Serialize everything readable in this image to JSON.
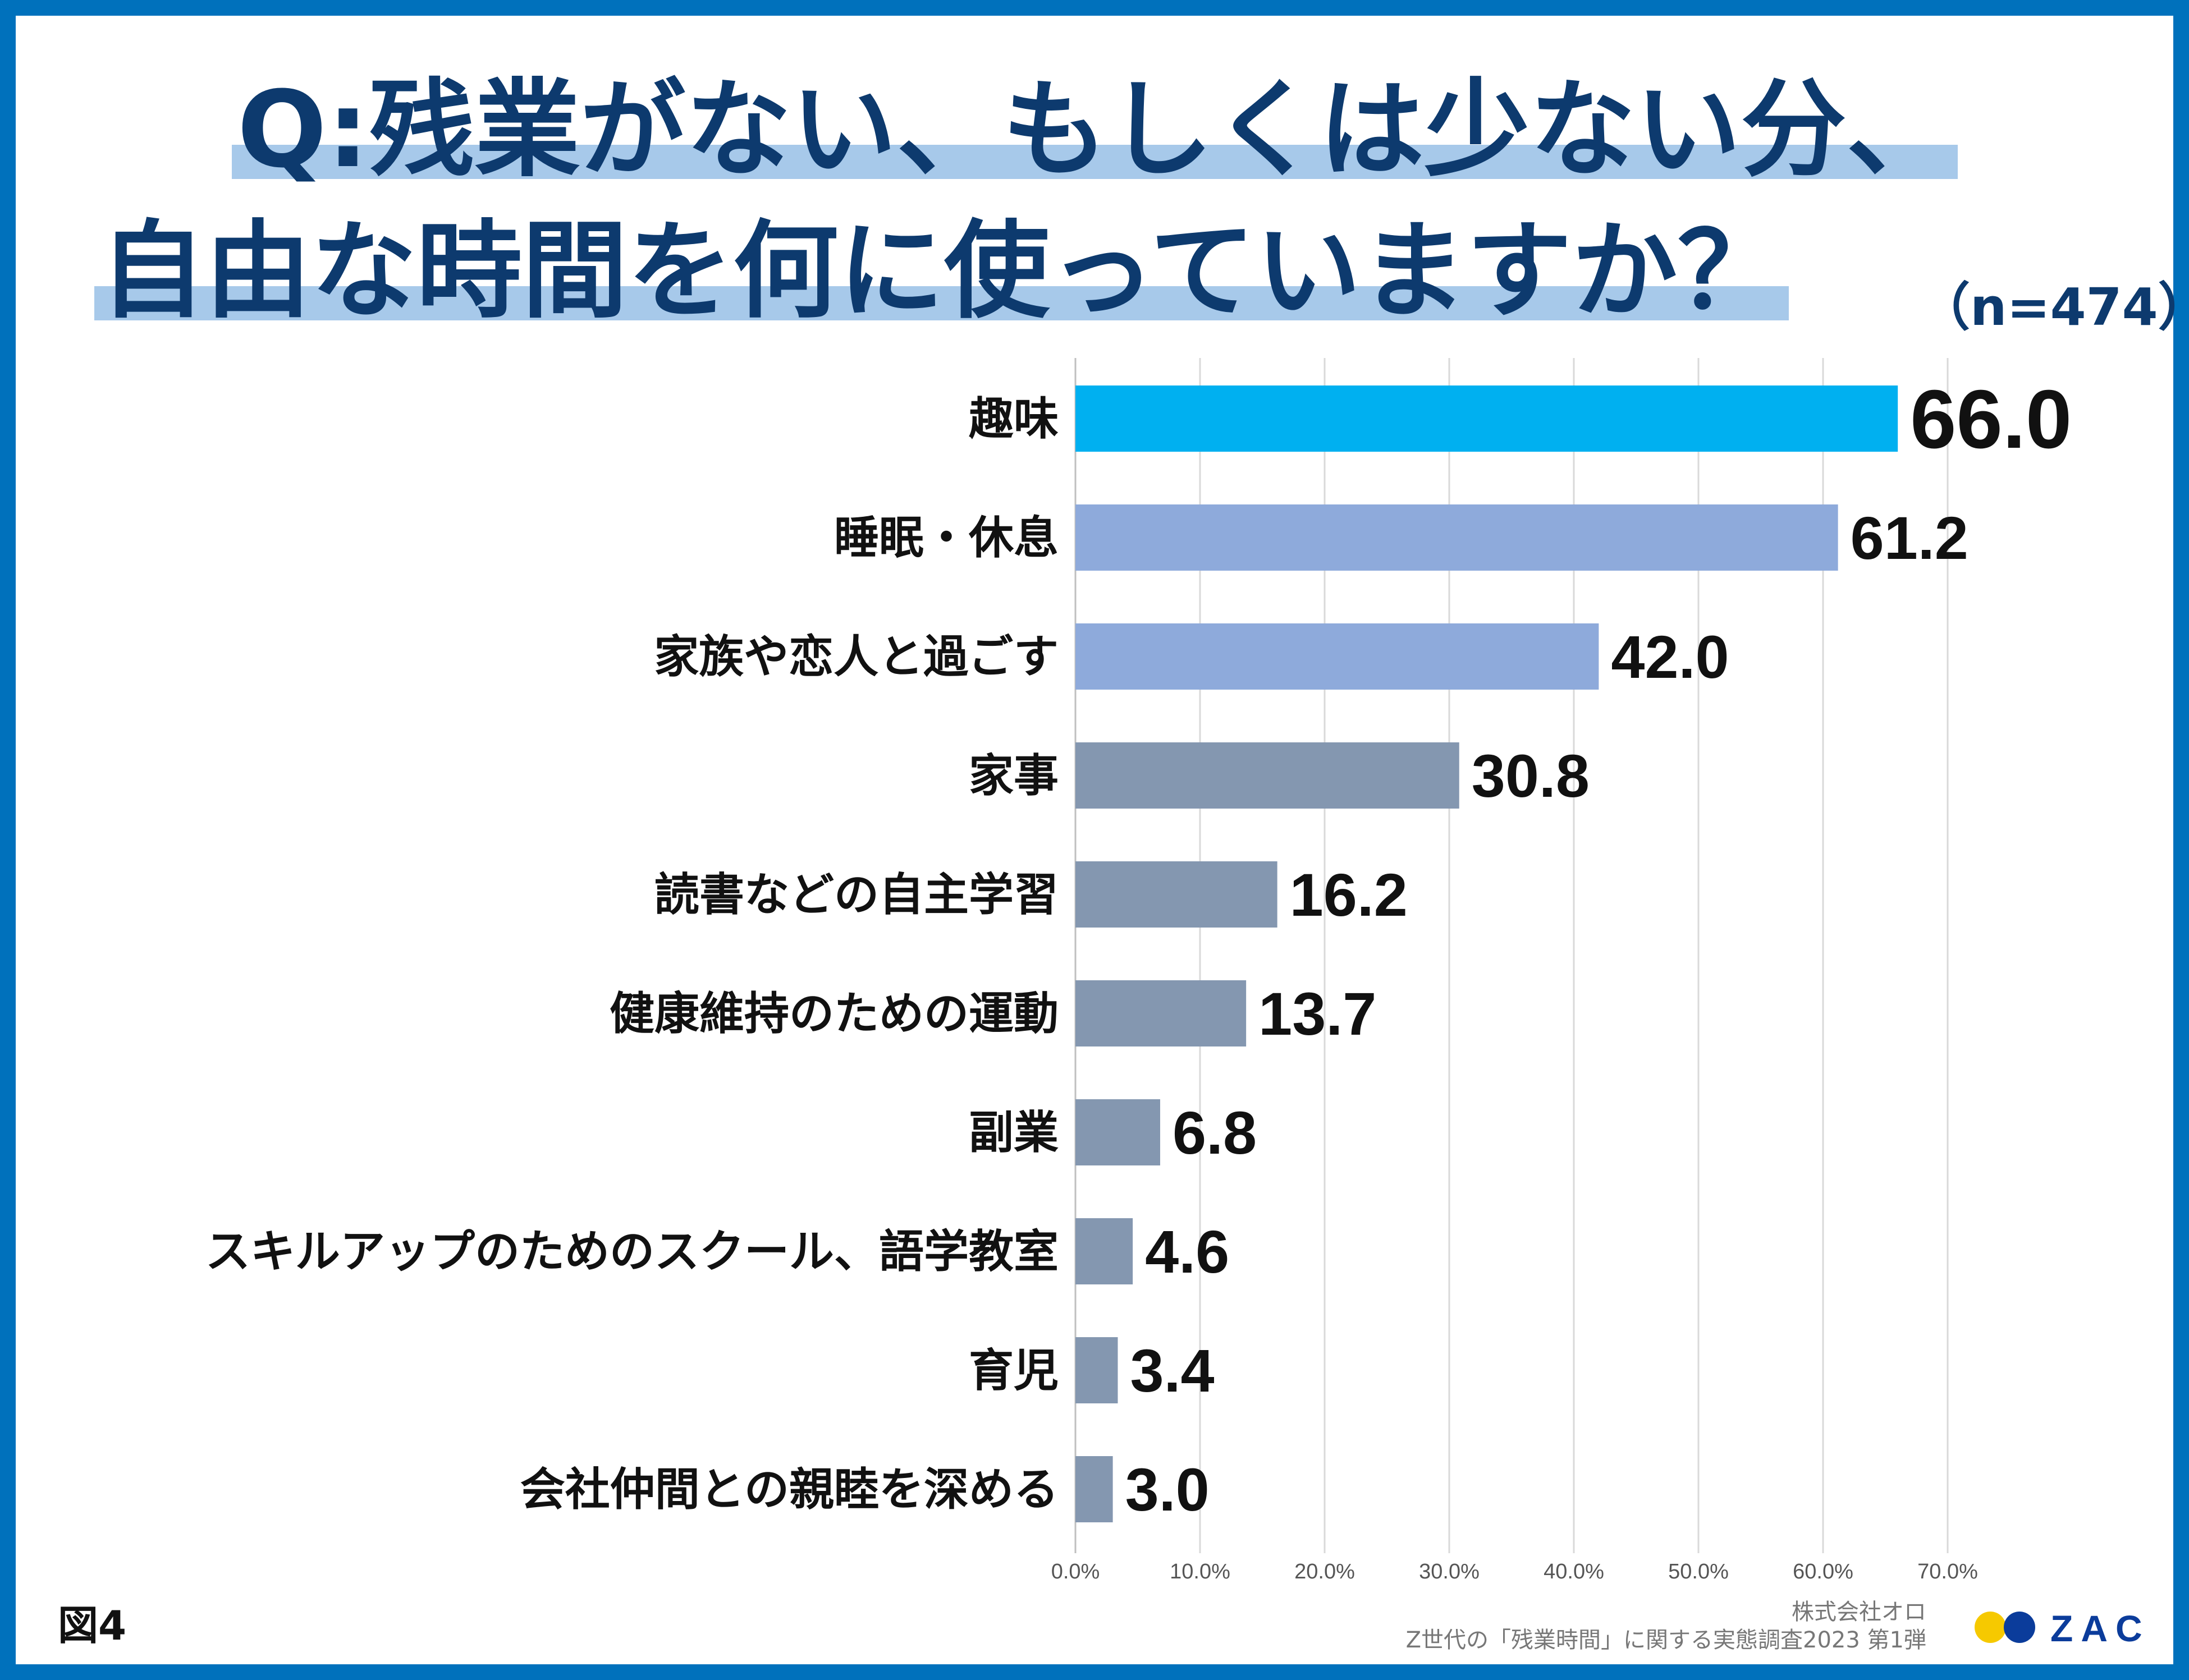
{
  "title": {
    "line1": "Q:残業がない、もしくは少ない分、",
    "line2": "自由な時間を何に使っていますか？",
    "sample_size": "（n=474）"
  },
  "chart_data": {
    "type": "bar",
    "orientation": "horizontal",
    "title": "Q:残業がない、もしくは少ない分、自由な時間を何に使っていますか？",
    "categories": [
      "趣味",
      "睡眠・休息",
      "家族や恋人と過ごす",
      "家事",
      "読書などの自主学習",
      "健康維持のための運動",
      "副業",
      "スキルアップのためのスクール、語学教室",
      "育児",
      "会社仲間との親睦を深める"
    ],
    "values": [
      66.0,
      61.2,
      42.0,
      30.8,
      16.2,
      13.7,
      6.8,
      4.6,
      3.4,
      3.0
    ],
    "value_labels": [
      "66.0",
      "61.2",
      "42.0",
      "30.8",
      "16.2",
      "13.7",
      "6.8",
      "4.6",
      "3.4",
      "3.0"
    ],
    "colors": [
      "#00b0f0",
      "#8eaadb",
      "#8eaadb",
      "#8497b0",
      "#8497b0",
      "#8497b0",
      "#8497b0",
      "#8497b0",
      "#8497b0",
      "#8497b0"
    ],
    "xlim": [
      0,
      70
    ],
    "xticks": [
      "0.0%",
      "10.0%",
      "20.0%",
      "30.0%",
      "40.0%",
      "50.0%",
      "60.0%",
      "70.0%"
    ],
    "unit": "%",
    "grid": true
  },
  "footer": {
    "figure_label": "図4",
    "company": "株式会社オロ",
    "source": "Z世代の「残業時間」に関する実態調査2023 第1弾",
    "logo_text": "ZAC"
  },
  "colors": {
    "frame": "#0071bc",
    "title": "#0d3a6e",
    "highlight": "#a7c9ea",
    "logo_yellow": "#f6c900",
    "logo_blue": "#0b3c9b"
  }
}
